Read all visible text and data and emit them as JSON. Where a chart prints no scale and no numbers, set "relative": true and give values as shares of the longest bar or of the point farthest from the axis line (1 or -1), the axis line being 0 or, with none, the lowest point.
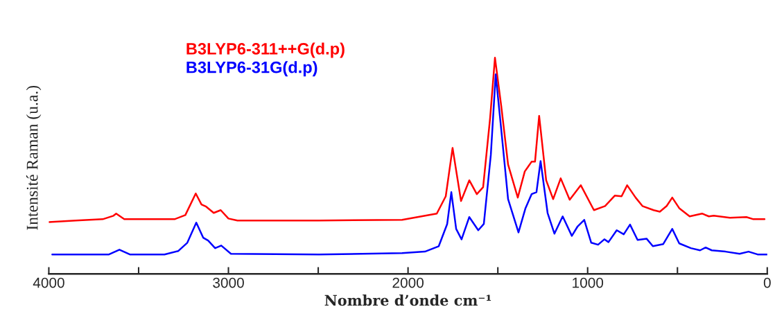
{
  "chart_data": {
    "type": "line",
    "relative": true,
    "xlabel": "Nombre d’onde cm⁻¹",
    "ylabel": "Intensité Raman (u.a.)",
    "xlim": [
      4000,
      0
    ],
    "xticks": [
      4000,
      {
        "value": 3500,
        "label": null
      },
      3000,
      {
        "value": 2500,
        "label": null
      },
      2000,
      {
        "value": 1500,
        "label": null
      },
      1000,
      {
        "value": 500,
        "label": null
      },
      0
    ],
    "tick_labels": "x",
    "legend": "top left",
    "grid": false,
    "marker": "none",
    "line_style": "solid",
    "series": [
      {
        "name": "B3LYP6-311++G(d.p)",
        "color": "#ff0000",
        "x": [
          4000,
          3850,
          3700,
          3640,
          3625,
          3580,
          3300,
          3240,
          3182,
          3150,
          3124,
          3082,
          3043,
          3000,
          2950,
          2500,
          2033,
          1840,
          1790,
          1752,
          1705,
          1659,
          1617,
          1582,
          1543,
          1516,
          1481,
          1443,
          1389,
          1350,
          1312,
          1293,
          1270,
          1231,
          1192,
          1150,
          1100,
          1038,
          965,
          903,
          849,
          811,
          780,
          733,
          695,
          633,
          598,
          560,
          529,
          490,
          432,
          363,
          325,
          298,
          208,
          116,
          77,
          15
        ],
        "values": [
          0.24,
          0.247,
          0.253,
          0.269,
          0.279,
          0.253,
          0.253,
          0.272,
          0.372,
          0.321,
          0.311,
          0.282,
          0.295,
          0.256,
          0.247,
          0.247,
          0.25,
          0.279,
          0.359,
          0.583,
          0.337,
          0.433,
          0.369,
          0.401,
          0.721,
          1.0,
          0.776,
          0.506,
          0.353,
          0.474,
          0.519,
          0.519,
          0.731,
          0.433,
          0.346,
          0.442,
          0.343,
          0.41,
          0.295,
          0.314,
          0.362,
          0.359,
          0.41,
          0.353,
          0.314,
          0.295,
          0.288,
          0.314,
          0.353,
          0.304,
          0.266,
          0.279,
          0.266,
          0.269,
          0.26,
          0.263,
          0.253,
          0.253
        ]
      },
      {
        "name": "B3LYP6-31G(d.p)",
        "color": "#0000ff",
        "x": [
          3981,
          3665,
          3607,
          3549,
          3356,
          3279,
          3229,
          3179,
          3140,
          3113,
          3074,
          3040,
          2986,
          2496,
          2033,
          1906,
          1829,
          1782,
          1759,
          1732,
          1702,
          1659,
          1609,
          1578,
          1539,
          1512,
          1481,
          1443,
          1385,
          1346,
          1312,
          1285,
          1262,
          1223,
          1185,
          1139,
          1088,
          1057,
          1019,
          980,
          942,
          907,
          884,
          838,
          799,
          764,
          722,
          672,
          637,
          579,
          529,
          490,
          425,
          374,
          343,
          309,
          232,
          154,
          104,
          54,
          0
        ],
        "values": [
          0.09,
          0.09,
          0.112,
          0.09,
          0.09,
          0.106,
          0.144,
          0.237,
          0.167,
          0.154,
          0.119,
          0.131,
          0.093,
          0.09,
          0.096,
          0.103,
          0.128,
          0.231,
          0.378,
          0.208,
          0.16,
          0.263,
          0.202,
          0.231,
          0.551,
          0.923,
          0.667,
          0.346,
          0.192,
          0.304,
          0.369,
          0.378,
          0.522,
          0.282,
          0.186,
          0.266,
          0.176,
          0.218,
          0.25,
          0.144,
          0.135,
          0.16,
          0.147,
          0.202,
          0.183,
          0.228,
          0.157,
          0.163,
          0.128,
          0.138,
          0.208,
          0.141,
          0.119,
          0.109,
          0.122,
          0.109,
          0.103,
          0.093,
          0.103,
          0.09,
          0.09
        ]
      }
    ]
  }
}
